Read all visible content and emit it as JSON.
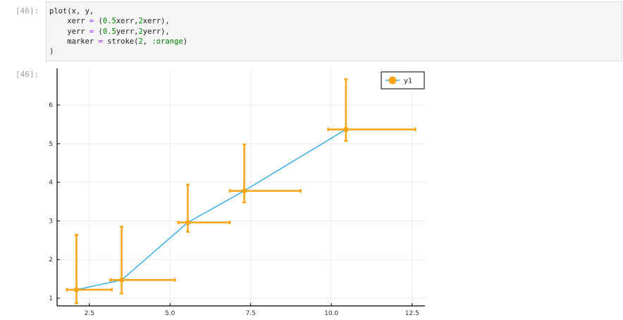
{
  "cells": {
    "input_prompt": "[46]:",
    "output_prompt": "[46]:",
    "code_lines": [
      [
        {
          "t": "plot(x, y,"
        }
      ],
      [
        {
          "t": "    xerr "
        },
        {
          "t": "=",
          "c": "op"
        },
        {
          "t": " ("
        },
        {
          "t": "0.5",
          "c": "num"
        },
        {
          "t": "xerr,"
        },
        {
          "t": "2",
          "c": "num"
        },
        {
          "t": "xerr),"
        }
      ],
      [
        {
          "t": "    yerr "
        },
        {
          "t": "=",
          "c": "op"
        },
        {
          "t": " ("
        },
        {
          "t": "0.5",
          "c": "num"
        },
        {
          "t": "yerr,"
        },
        {
          "t": "2",
          "c": "num"
        },
        {
          "t": "yerr),"
        }
      ],
      [
        {
          "t": "    marker "
        },
        {
          "t": "=",
          "c": "op"
        },
        {
          "t": " stroke("
        },
        {
          "t": "2",
          "c": "num"
        },
        {
          "t": ", "
        },
        {
          "t": ":orange",
          "c": "sym"
        },
        {
          "t": ")"
        }
      ],
      [
        {
          "t": ")"
        }
      ]
    ]
  },
  "chart_data": {
    "type": "scatter",
    "xlim": [
      1.5,
      12.9
    ],
    "ylim": [
      0.8,
      6.95
    ],
    "x_ticks": [
      2.5,
      5.0,
      7.5,
      10.0,
      12.5
    ],
    "x_tick_labels": [
      "2.5",
      "5.0",
      "7.5",
      "10.0",
      "12.5"
    ],
    "y_ticks": [
      1,
      2,
      3,
      4,
      5,
      6
    ],
    "y_tick_labels": [
      "1",
      "2",
      "3",
      "4",
      "5",
      "6"
    ],
    "grid": true,
    "legend_position": "top-right",
    "colors": {
      "line": "#3daee9",
      "error": "#f5a516",
      "marker": "#f5a516"
    },
    "series": [
      {
        "name": "y1",
        "x": [
          2.1,
          3.5,
          5.55,
          7.3,
          10.45
        ],
        "y": [
          1.22,
          1.47,
          2.96,
          3.78,
          5.37
        ],
        "xerr_low": [
          0.3,
          0.35,
          0.3,
          0.45,
          0.55
        ],
        "xerr_high": [
          1.1,
          1.65,
          1.3,
          1.75,
          2.15
        ],
        "yerr_low": [
          0.35,
          0.35,
          0.24,
          0.3,
          0.3
        ],
        "yerr_high": [
          1.42,
          1.38,
          0.98,
          1.2,
          1.3
        ]
      }
    ]
  }
}
